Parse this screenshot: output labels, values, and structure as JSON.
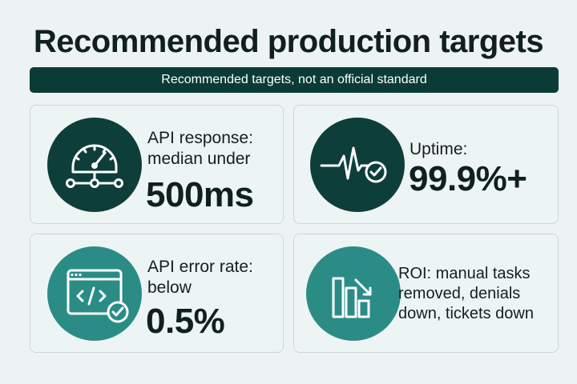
{
  "title": "Recommended production targets",
  "banner": "Recommended targets, not an official standard",
  "cards": [
    {
      "label": "API response: median under",
      "value": "500ms",
      "icon": "speedometer-icon"
    },
    {
      "label": "Uptime:",
      "value": "99.9%+",
      "icon": "heartbeat-check-icon"
    },
    {
      "label": "API error rate: below",
      "value": "0.5%",
      "icon": "code-window-check-icon"
    },
    {
      "label": "ROI: manual tasks removed, denials down, tickets down",
      "icon": "declining-bars-icon"
    }
  ],
  "colors": {
    "background": "#edf3f2",
    "banner": "#0b3b37",
    "dark_circle": "#0d3e3a",
    "teal_circle": "#2b8c86"
  }
}
